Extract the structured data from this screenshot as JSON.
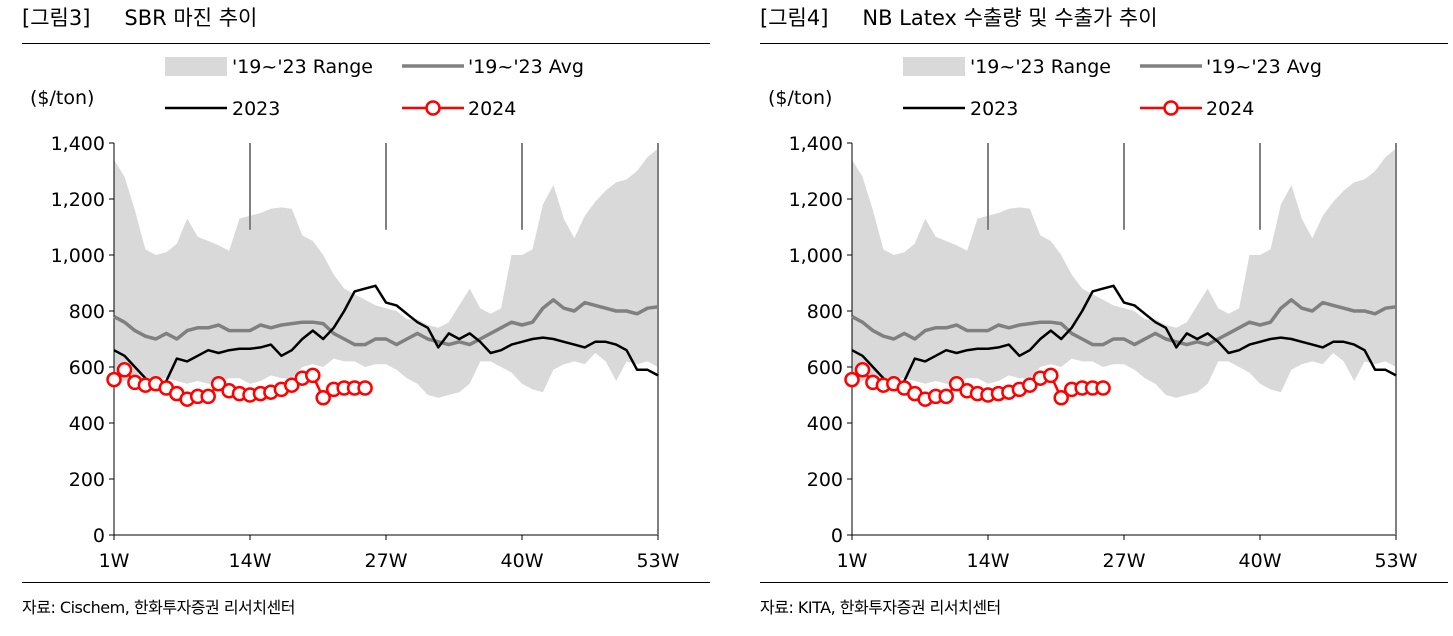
{
  "charts": [
    {
      "figure_no": "[그림3]",
      "title": "SBR 마진 추이",
      "source": "자료: Cischem, 한화투자증권 리서치센터",
      "unit": "($/ton)",
      "legend": {
        "range": "'19~'23 Range",
        "avg": "'19~'23 Avg",
        "y2023": "2023",
        "y2024": "2024"
      }
    },
    {
      "figure_no": "[그림4]",
      "title": "NB Latex 수출량 및 수출가 추이",
      "source": "자료: KITA, 한화투자증권 리서치센터",
      "unit": "($/ton)",
      "legend": {
        "range": "'19~'23 Range",
        "avg": "'19~'23 Avg",
        "y2023": "2023",
        "y2024": "2024"
      }
    }
  ],
  "chart_data": [
    {
      "type": "line",
      "title": "SBR 마진 추이",
      "ylabel": "($/ton)",
      "x_ticks": [
        "1W",
        "14W",
        "27W",
        "40W",
        "53W"
      ],
      "x_tick_weeks": [
        1,
        14,
        27,
        40,
        53
      ],
      "xlim": [
        1,
        53
      ],
      "ylim": [
        0,
        1400
      ],
      "y_ticks": [
        "0",
        "200",
        "400",
        "600",
        "800",
        "1,000",
        "1,200",
        "1,400"
      ],
      "y_tick_values": [
        0,
        200,
        400,
        600,
        800,
        1000,
        1200,
        1400
      ],
      "marker_weeks": [
        14,
        27,
        40
      ],
      "range_series": {
        "name": "'19~'23 Range",
        "weeks": [
          1,
          2,
          3,
          4,
          5,
          6,
          7,
          8,
          9,
          10,
          11,
          12,
          13,
          14,
          15,
          16,
          17,
          18,
          19,
          20,
          21,
          22,
          23,
          24,
          25,
          26,
          27,
          28,
          29,
          30,
          31,
          32,
          33,
          34,
          35,
          36,
          37,
          38,
          39,
          40,
          41,
          42,
          43,
          44,
          45,
          46,
          47,
          48,
          49,
          50,
          51,
          52,
          53
        ],
        "upper": [
          1340,
          1280,
          1160,
          1020,
          1000,
          1010,
          1040,
          1130,
          1065,
          1050,
          1035,
          1015,
          1130,
          1140,
          1150,
          1165,
          1170,
          1165,
          1070,
          1050,
          1000,
          930,
          880,
          860,
          840,
          820,
          810,
          800,
          770,
          770,
          750,
          740,
          760,
          820,
          880,
          810,
          790,
          810,
          1000,
          1000,
          1020,
          1180,
          1250,
          1130,
          1060,
          1140,
          1190,
          1230,
          1260,
          1270,
          1300,
          1350,
          1380
        ],
        "lower": [
          530,
          550,
          560,
          560,
          560,
          560,
          550,
          540,
          550,
          540,
          540,
          560,
          560,
          540,
          550,
          570,
          560,
          560,
          600,
          610,
          600,
          630,
          620,
          620,
          600,
          610,
          610,
          590,
          560,
          540,
          500,
          490,
          500,
          510,
          540,
          620,
          620,
          600,
          580,
          540,
          520,
          510,
          590,
          610,
          620,
          610,
          650,
          620,
          550,
          620,
          610,
          620,
          600
        ]
      },
      "series": [
        {
          "name": "'19~'23 Avg",
          "weeks": [
            1,
            2,
            3,
            4,
            5,
            6,
            7,
            8,
            9,
            10,
            11,
            12,
            13,
            14,
            15,
            16,
            17,
            18,
            19,
            20,
            21,
            22,
            23,
            24,
            25,
            26,
            27,
            28,
            29,
            30,
            31,
            32,
            33,
            34,
            35,
            36,
            37,
            38,
            39,
            40,
            41,
            42,
            43,
            44,
            45,
            46,
            47,
            48,
            49,
            50,
            51,
            52,
            53
          ],
          "values": [
            780,
            760,
            730,
            710,
            700,
            720,
            700,
            730,
            740,
            740,
            750,
            730,
            730,
            730,
            750,
            740,
            750,
            755,
            760,
            760,
            755,
            720,
            700,
            680,
            680,
            700,
            700,
            680,
            700,
            720,
            700,
            690,
            680,
            690,
            680,
            700,
            720,
            740,
            760,
            750,
            760,
            810,
            840,
            810,
            800,
            830,
            820,
            810,
            800,
            800,
            790,
            810,
            815
          ]
        },
        {
          "name": "2023",
          "weeks": [
            1,
            2,
            3,
            4,
            5,
            6,
            7,
            8,
            9,
            10,
            11,
            12,
            13,
            14,
            15,
            16,
            17,
            18,
            19,
            20,
            21,
            22,
            23,
            24,
            25,
            26,
            27,
            28,
            29,
            30,
            31,
            32,
            33,
            34,
            35,
            36,
            37,
            38,
            39,
            40,
            41,
            42,
            43,
            44,
            45,
            46,
            47,
            48,
            49,
            50,
            51,
            52,
            53
          ],
          "values": [
            660,
            640,
            600,
            560,
            520,
            550,
            630,
            620,
            640,
            660,
            650,
            660,
            665,
            665,
            670,
            680,
            640,
            660,
            700,
            730,
            700,
            740,
            800,
            870,
            880,
            890,
            830,
            820,
            790,
            760,
            740,
            670,
            720,
            700,
            720,
            690,
            650,
            660,
            680,
            690,
            700,
            705,
            700,
            690,
            680,
            670,
            690,
            690,
            680,
            660,
            590,
            590,
            570
          ]
        },
        {
          "name": "2024",
          "weeks": [
            1,
            2,
            3,
            4,
            5,
            6,
            7,
            8,
            9,
            10,
            11,
            12,
            13,
            14,
            15,
            16,
            17,
            18,
            19,
            20,
            21,
            22,
            23,
            24,
            25
          ],
          "values": [
            555,
            590,
            545,
            535,
            540,
            525,
            505,
            485,
            495,
            495,
            540,
            515,
            505,
            500,
            505,
            510,
            520,
            535,
            560,
            570,
            490,
            520,
            525,
            525,
            525
          ]
        }
      ]
    },
    {
      "type": "line",
      "title": "NB Latex 수출량 및 수출가 추이",
      "ylabel": "($/ton)",
      "x_ticks": [
        "1W",
        "14W",
        "27W",
        "40W",
        "53W"
      ],
      "x_tick_weeks": [
        1,
        14,
        27,
        40,
        53
      ],
      "xlim": [
        1,
        53
      ],
      "ylim": [
        0,
        1400
      ],
      "y_ticks": [
        "0",
        "200",
        "400",
        "600",
        "800",
        "1,000",
        "1,200",
        "1,400"
      ],
      "y_tick_values": [
        0,
        200,
        400,
        600,
        800,
        1000,
        1200,
        1400
      ],
      "marker_weeks": [
        14,
        27,
        40
      ],
      "range_series": {
        "name": "'19~'23 Range",
        "weeks": [
          1,
          2,
          3,
          4,
          5,
          6,
          7,
          8,
          9,
          10,
          11,
          12,
          13,
          14,
          15,
          16,
          17,
          18,
          19,
          20,
          21,
          22,
          23,
          24,
          25,
          26,
          27,
          28,
          29,
          30,
          31,
          32,
          33,
          34,
          35,
          36,
          37,
          38,
          39,
          40,
          41,
          42,
          43,
          44,
          45,
          46,
          47,
          48,
          49,
          50,
          51,
          52,
          53
        ],
        "upper": [
          1340,
          1280,
          1160,
          1020,
          1000,
          1010,
          1040,
          1130,
          1065,
          1050,
          1035,
          1015,
          1130,
          1140,
          1150,
          1165,
          1170,
          1165,
          1070,
          1050,
          1000,
          930,
          880,
          860,
          840,
          820,
          810,
          800,
          770,
          770,
          750,
          740,
          760,
          820,
          880,
          810,
          790,
          810,
          1000,
          1000,
          1020,
          1180,
          1250,
          1130,
          1060,
          1140,
          1190,
          1230,
          1260,
          1270,
          1300,
          1350,
          1380
        ],
        "lower": [
          530,
          550,
          560,
          560,
          560,
          560,
          550,
          540,
          550,
          540,
          540,
          560,
          560,
          540,
          550,
          570,
          560,
          560,
          600,
          610,
          600,
          630,
          620,
          620,
          600,
          610,
          610,
          590,
          560,
          540,
          500,
          490,
          500,
          510,
          540,
          620,
          620,
          600,
          580,
          540,
          520,
          510,
          590,
          610,
          620,
          610,
          650,
          620,
          550,
          620,
          610,
          620,
          600
        ]
      },
      "series": [
        {
          "name": "'19~'23 Avg",
          "weeks": [
            1,
            2,
            3,
            4,
            5,
            6,
            7,
            8,
            9,
            10,
            11,
            12,
            13,
            14,
            15,
            16,
            17,
            18,
            19,
            20,
            21,
            22,
            23,
            24,
            25,
            26,
            27,
            28,
            29,
            30,
            31,
            32,
            33,
            34,
            35,
            36,
            37,
            38,
            39,
            40,
            41,
            42,
            43,
            44,
            45,
            46,
            47,
            48,
            49,
            50,
            51,
            52,
            53
          ],
          "values": [
            780,
            760,
            730,
            710,
            700,
            720,
            700,
            730,
            740,
            740,
            750,
            730,
            730,
            730,
            750,
            740,
            750,
            755,
            760,
            760,
            755,
            720,
            700,
            680,
            680,
            700,
            700,
            680,
            700,
            720,
            700,
            690,
            680,
            690,
            680,
            700,
            720,
            740,
            760,
            750,
            760,
            810,
            840,
            810,
            800,
            830,
            820,
            810,
            800,
            800,
            790,
            810,
            815
          ]
        },
        {
          "name": "2023",
          "weeks": [
            1,
            2,
            3,
            4,
            5,
            6,
            7,
            8,
            9,
            10,
            11,
            12,
            13,
            14,
            15,
            16,
            17,
            18,
            19,
            20,
            21,
            22,
            23,
            24,
            25,
            26,
            27,
            28,
            29,
            30,
            31,
            32,
            33,
            34,
            35,
            36,
            37,
            38,
            39,
            40,
            41,
            42,
            43,
            44,
            45,
            46,
            47,
            48,
            49,
            50,
            51,
            52,
            53
          ],
          "values": [
            660,
            640,
            600,
            560,
            520,
            550,
            630,
            620,
            640,
            660,
            650,
            660,
            665,
            665,
            670,
            680,
            640,
            660,
            700,
            730,
            700,
            740,
            800,
            870,
            880,
            890,
            830,
            820,
            790,
            760,
            740,
            670,
            720,
            700,
            720,
            690,
            650,
            660,
            680,
            690,
            700,
            705,
            700,
            690,
            680,
            670,
            690,
            690,
            680,
            660,
            590,
            590,
            570
          ]
        },
        {
          "name": "2024",
          "weeks": [
            1,
            2,
            3,
            4,
            5,
            6,
            7,
            8,
            9,
            10,
            11,
            12,
            13,
            14,
            15,
            16,
            17,
            18,
            19,
            20,
            21,
            22,
            23,
            24,
            25
          ],
          "values": [
            555,
            590,
            545,
            535,
            540,
            525,
            505,
            485,
            495,
            495,
            540,
            515,
            505,
            500,
            505,
            510,
            520,
            535,
            560,
            570,
            490,
            520,
            525,
            525,
            525
          ]
        }
      ]
    }
  ]
}
